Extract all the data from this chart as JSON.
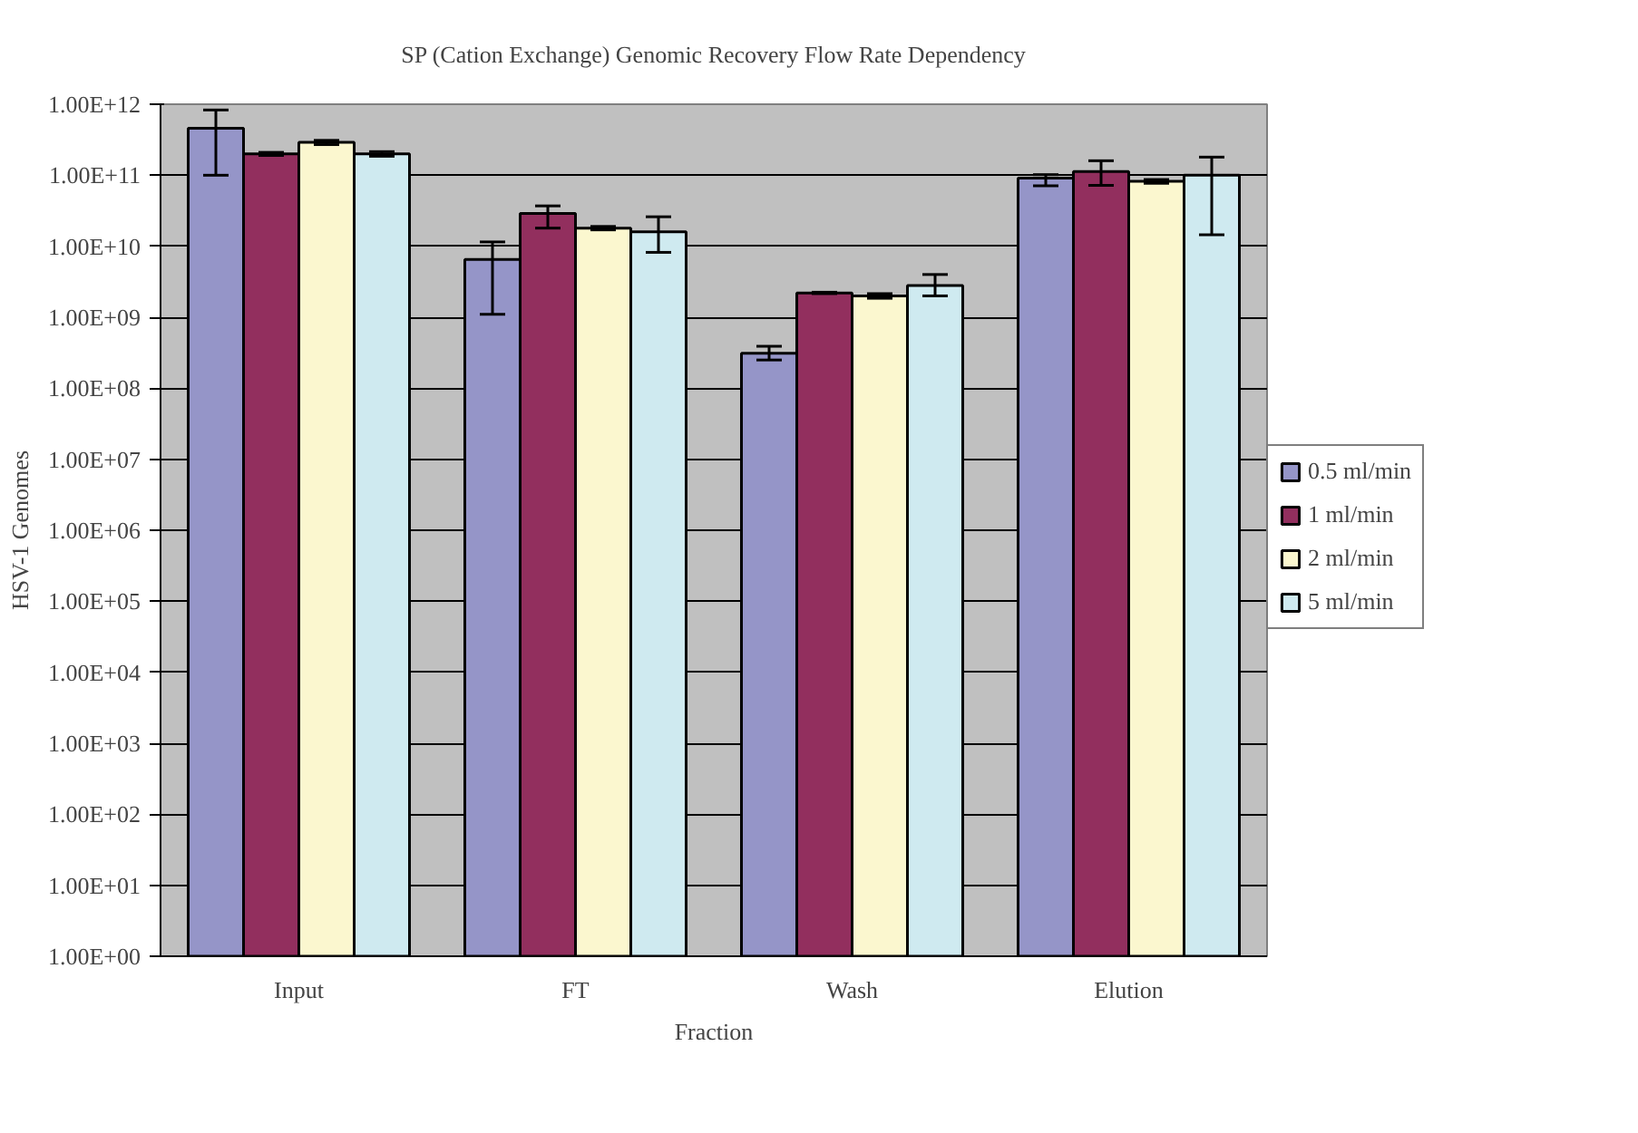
{
  "chart_data": {
    "type": "bar",
    "title": "SP (Cation Exchange) Genomic Recovery Flow Rate Dependency",
    "xlabel": "Fraction",
    "ylabel": "HSV-1 Genomes",
    "categories": [
      "Input",
      "FT",
      "Wash",
      "Elution"
    ],
    "series": [
      {
        "name": "0.5 ml/min",
        "color": "#9595c8",
        "values": [
          460000000000.0,
          6500000000.0,
          310000000.0,
          91000000000.0
        ],
        "errors": [
          [
            100000000000.0,
            830000000000.0
          ],
          [
            1100000000.0,
            11500000000.0
          ],
          [
            250000000.0,
            390000000.0
          ],
          [
            71000000000.0,
            102000000000.0
          ]
        ]
      },
      {
        "name": "1 ml/min",
        "color": "#922f5e",
        "values": [
          200000000000.0,
          29000000000.0,
          2200000000.0,
          113000000000.0
        ],
        "errors": [
          [
            190000000000.0,
            210000000000.0
          ],
          [
            18000000000.0,
            37000000000.0
          ],
          [
            2150000000.0,
            2250000000.0
          ],
          [
            72000000000.0,
            160000000000.0
          ]
        ]
      },
      {
        "name": "2 ml/min",
        "color": "#fbf7cf",
        "values": [
          290000000000.0,
          18000000000.0,
          2000000000.0,
          82000000000.0
        ],
        "errors": [
          [
            270000000000.0,
            310000000000.0
          ],
          [
            17000000000.0,
            19000000000.0
          ],
          [
            1850000000.0,
            2150000000.0
          ],
          [
            77000000000.0,
            87000000000.0
          ]
        ]
      },
      {
        "name": "5 ml/min",
        "color": "#cfeaf0",
        "values": [
          200000000000.0,
          16000000000.0,
          2800000000.0,
          100000000000.0
        ],
        "errors": [
          [
            185000000000.0,
            215000000000.0
          ],
          [
            8200000000.0,
            26000000000.0
          ],
          [
            2000000000.0,
            4000000000.0
          ],
          [
            14500000000.0,
            180000000000.0
          ]
        ]
      }
    ],
    "log": "y",
    "ylim": [
      1,
      1000000000000.0
    ],
    "yticks": [
      {
        "value": 1,
        "label": "1.00E+00"
      },
      {
        "value": 10,
        "label": "1.00E+01"
      },
      {
        "value": 100,
        "label": "1.00E+02"
      },
      {
        "value": 1000,
        "label": "1.00E+03"
      },
      {
        "value": 10000,
        "label": "1.00E+04"
      },
      {
        "value": 100000,
        "label": "1.00E+05"
      },
      {
        "value": 1000000,
        "label": "1.00E+06"
      },
      {
        "value": 10000000,
        "label": "1.00E+07"
      },
      {
        "value": 100000000,
        "label": "1.00E+08"
      },
      {
        "value": 1000000000,
        "label": "1.00E+09"
      },
      {
        "value": 10000000000,
        "label": "1.00E+10"
      },
      {
        "value": 100000000000,
        "label": "1.00E+11"
      },
      {
        "value": 1000000000000,
        "label": "1.00E+12"
      }
    ],
    "grid": "y",
    "legend": "right"
  }
}
